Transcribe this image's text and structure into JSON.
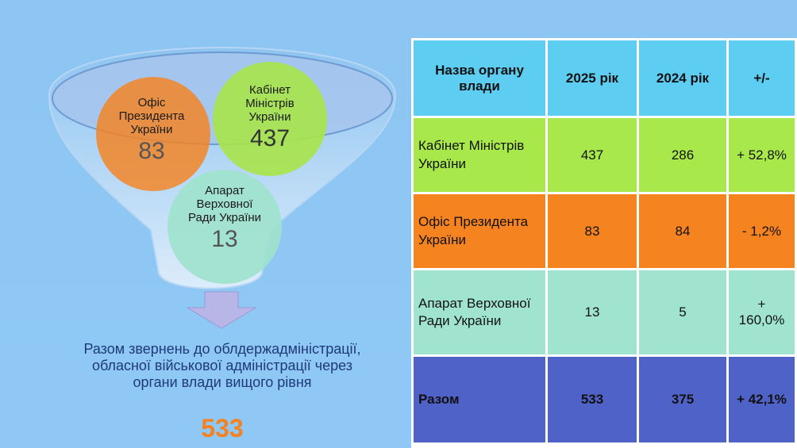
{
  "funnel": {
    "colors": {
      "top": "#8ec4f0",
      "bottom": "#dcecfb",
      "rim": "#a8c8ee",
      "rim_stroke": "#5a8cc8",
      "arrow": "#b8b6e6"
    },
    "circles": [
      {
        "key": "office",
        "name": "Офіс Президента України",
        "value": "83",
        "color": "#f58220"
      },
      {
        "key": "cabinet",
        "name": "Кабінет Міністрів України",
        "value": "437",
        "color": "#a8e44a"
      },
      {
        "key": "parliament",
        "name": "Апарат Верховної Ради України",
        "value": "13",
        "color": "#9ee2cc"
      }
    ]
  },
  "summary": {
    "text": "Разом звернень до облдержадміністрації, обласної військової адміністрації через органи влади вищого рівня",
    "total": "533"
  },
  "table": {
    "headers": [
      "Назва органу влади",
      "2025 рік",
      "2024 рік",
      "+/-"
    ],
    "header_color": "#5dcdf2",
    "rows": [
      {
        "name": "Кабінет Міністрів України",
        "y2025": "437",
        "y2024": "286",
        "diff": "+ 52,8%",
        "color": "#a8e84a"
      },
      {
        "name": "Офіс Президента України",
        "y2025": "83",
        "y2024": "84",
        "diff": "- 1,2%",
        "color": "#f5831f"
      },
      {
        "name": "Апарат Верховної Ради України",
        "y2025": "13",
        "y2024": "5",
        "diff": "+ 160,0%",
        "color": "#a0e4d0"
      }
    ],
    "total": {
      "name": "Разом",
      "y2025": "533",
      "y2024": "375",
      "diff": "+ 42,1%",
      "color": "#4f62c8"
    }
  }
}
